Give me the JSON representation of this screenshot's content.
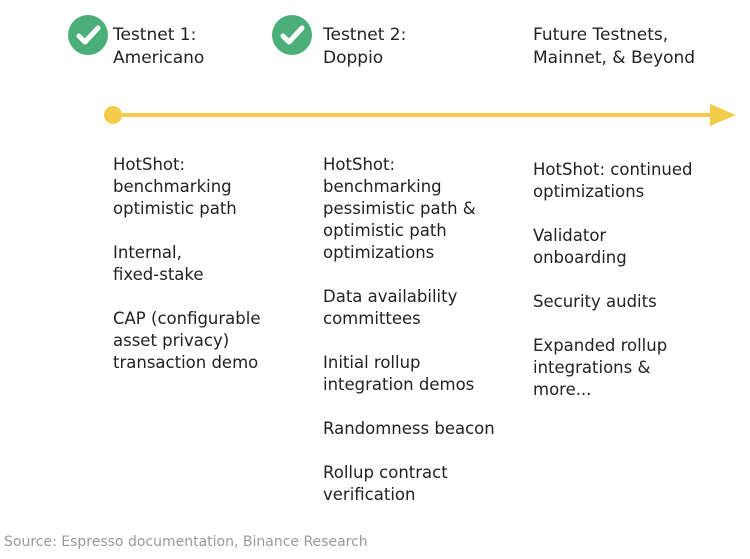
{
  "colors": {
    "check": "#4caf7a",
    "timeline": "#f2cc4a",
    "text": "#222222",
    "source": "#999999"
  },
  "milestones": [
    {
      "title": "Testnet 1:\nAmericano",
      "completed": true,
      "icon": "check-circle-icon",
      "items": [
        "HotShot:\nbenchmarking\noptimistic path",
        "Internal,\nfixed-stake",
        "CAP (configurable\nasset privacy)\ntransaction demo"
      ]
    },
    {
      "title": "Testnet 2:\nDoppio",
      "completed": true,
      "icon": "check-circle-icon",
      "items": [
        "HotShot:\nbenchmarking\npessimistic path &\noptimistic path\noptimizations",
        "Data availability\ncommittees",
        "Initial rollup\nintegration demos",
        "Randomness beacon",
        "Rollup contract\nverification"
      ]
    },
    {
      "title": "Future Testnets,\nMainnet, & Beyond",
      "completed": false,
      "items": [
        "HotShot: continued\noptimizations",
        "Validator\nonboarding",
        "Security audits",
        "Expanded rollup\nintegrations &\nmore..."
      ]
    }
  ],
  "source": "Source: Espresso documentation, Binance Research"
}
